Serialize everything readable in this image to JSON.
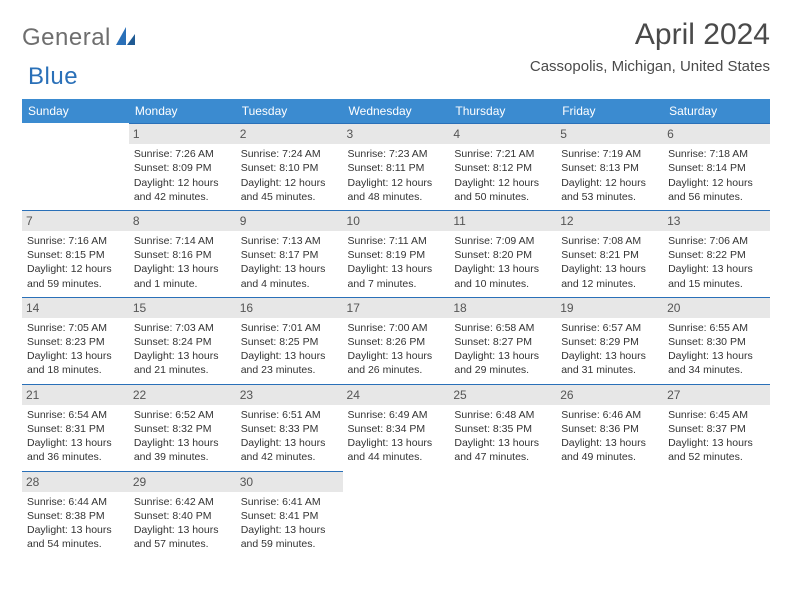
{
  "logo": {
    "part1": "General",
    "part2": "Blue"
  },
  "title": "April 2024",
  "subtitle": "Cassopolis, Michigan, United States",
  "colors": {
    "header_bg": "#3b8bd0",
    "header_text": "#ffffff",
    "daynum_bg": "#e7e7e7",
    "daynum_border": "#2a70b8",
    "text": "#333333",
    "title": "#4a4a4a",
    "logo_gray": "#6e6e6e",
    "logo_blue": "#2a70b8",
    "page_bg": "#ffffff"
  },
  "typography": {
    "title_size": 30,
    "subtitle_size": 15,
    "header_size": 12,
    "cell_size": 10.5
  },
  "weekdays": [
    "Sunday",
    "Monday",
    "Tuesday",
    "Wednesday",
    "Thursday",
    "Friday",
    "Saturday"
  ],
  "weeks": [
    [
      {
        "n": "",
        "lines": [
          "",
          "",
          "",
          ""
        ]
      },
      {
        "n": "1",
        "lines": [
          "Sunrise: 7:26 AM",
          "Sunset: 8:09 PM",
          "Daylight: 12 hours",
          "and 42 minutes."
        ]
      },
      {
        "n": "2",
        "lines": [
          "Sunrise: 7:24 AM",
          "Sunset: 8:10 PM",
          "Daylight: 12 hours",
          "and 45 minutes."
        ]
      },
      {
        "n": "3",
        "lines": [
          "Sunrise: 7:23 AM",
          "Sunset: 8:11 PM",
          "Daylight: 12 hours",
          "and 48 minutes."
        ]
      },
      {
        "n": "4",
        "lines": [
          "Sunrise: 7:21 AM",
          "Sunset: 8:12 PM",
          "Daylight: 12 hours",
          "and 50 minutes."
        ]
      },
      {
        "n": "5",
        "lines": [
          "Sunrise: 7:19 AM",
          "Sunset: 8:13 PM",
          "Daylight: 12 hours",
          "and 53 minutes."
        ]
      },
      {
        "n": "6",
        "lines": [
          "Sunrise: 7:18 AM",
          "Sunset: 8:14 PM",
          "Daylight: 12 hours",
          "and 56 minutes."
        ]
      }
    ],
    [
      {
        "n": "7",
        "lines": [
          "Sunrise: 7:16 AM",
          "Sunset: 8:15 PM",
          "Daylight: 12 hours",
          "and 59 minutes."
        ]
      },
      {
        "n": "8",
        "lines": [
          "Sunrise: 7:14 AM",
          "Sunset: 8:16 PM",
          "Daylight: 13 hours",
          "and 1 minute."
        ]
      },
      {
        "n": "9",
        "lines": [
          "Sunrise: 7:13 AM",
          "Sunset: 8:17 PM",
          "Daylight: 13 hours",
          "and 4 minutes."
        ]
      },
      {
        "n": "10",
        "lines": [
          "Sunrise: 7:11 AM",
          "Sunset: 8:19 PM",
          "Daylight: 13 hours",
          "and 7 minutes."
        ]
      },
      {
        "n": "11",
        "lines": [
          "Sunrise: 7:09 AM",
          "Sunset: 8:20 PM",
          "Daylight: 13 hours",
          "and 10 minutes."
        ]
      },
      {
        "n": "12",
        "lines": [
          "Sunrise: 7:08 AM",
          "Sunset: 8:21 PM",
          "Daylight: 13 hours",
          "and 12 minutes."
        ]
      },
      {
        "n": "13",
        "lines": [
          "Sunrise: 7:06 AM",
          "Sunset: 8:22 PM",
          "Daylight: 13 hours",
          "and 15 minutes."
        ]
      }
    ],
    [
      {
        "n": "14",
        "lines": [
          "Sunrise: 7:05 AM",
          "Sunset: 8:23 PM",
          "Daylight: 13 hours",
          "and 18 minutes."
        ]
      },
      {
        "n": "15",
        "lines": [
          "Sunrise: 7:03 AM",
          "Sunset: 8:24 PM",
          "Daylight: 13 hours",
          "and 21 minutes."
        ]
      },
      {
        "n": "16",
        "lines": [
          "Sunrise: 7:01 AM",
          "Sunset: 8:25 PM",
          "Daylight: 13 hours",
          "and 23 minutes."
        ]
      },
      {
        "n": "17",
        "lines": [
          "Sunrise: 7:00 AM",
          "Sunset: 8:26 PM",
          "Daylight: 13 hours",
          "and 26 minutes."
        ]
      },
      {
        "n": "18",
        "lines": [
          "Sunrise: 6:58 AM",
          "Sunset: 8:27 PM",
          "Daylight: 13 hours",
          "and 29 minutes."
        ]
      },
      {
        "n": "19",
        "lines": [
          "Sunrise: 6:57 AM",
          "Sunset: 8:29 PM",
          "Daylight: 13 hours",
          "and 31 minutes."
        ]
      },
      {
        "n": "20",
        "lines": [
          "Sunrise: 6:55 AM",
          "Sunset: 8:30 PM",
          "Daylight: 13 hours",
          "and 34 minutes."
        ]
      }
    ],
    [
      {
        "n": "21",
        "lines": [
          "Sunrise: 6:54 AM",
          "Sunset: 8:31 PM",
          "Daylight: 13 hours",
          "and 36 minutes."
        ]
      },
      {
        "n": "22",
        "lines": [
          "Sunrise: 6:52 AM",
          "Sunset: 8:32 PM",
          "Daylight: 13 hours",
          "and 39 minutes."
        ]
      },
      {
        "n": "23",
        "lines": [
          "Sunrise: 6:51 AM",
          "Sunset: 8:33 PM",
          "Daylight: 13 hours",
          "and 42 minutes."
        ]
      },
      {
        "n": "24",
        "lines": [
          "Sunrise: 6:49 AM",
          "Sunset: 8:34 PM",
          "Daylight: 13 hours",
          "and 44 minutes."
        ]
      },
      {
        "n": "25",
        "lines": [
          "Sunrise: 6:48 AM",
          "Sunset: 8:35 PM",
          "Daylight: 13 hours",
          "and 47 minutes."
        ]
      },
      {
        "n": "26",
        "lines": [
          "Sunrise: 6:46 AM",
          "Sunset: 8:36 PM",
          "Daylight: 13 hours",
          "and 49 minutes."
        ]
      },
      {
        "n": "27",
        "lines": [
          "Sunrise: 6:45 AM",
          "Sunset: 8:37 PM",
          "Daylight: 13 hours",
          "and 52 minutes."
        ]
      }
    ],
    [
      {
        "n": "28",
        "lines": [
          "Sunrise: 6:44 AM",
          "Sunset: 8:38 PM",
          "Daylight: 13 hours",
          "and 54 minutes."
        ]
      },
      {
        "n": "29",
        "lines": [
          "Sunrise: 6:42 AM",
          "Sunset: 8:40 PM",
          "Daylight: 13 hours",
          "and 57 minutes."
        ]
      },
      {
        "n": "30",
        "lines": [
          "Sunrise: 6:41 AM",
          "Sunset: 8:41 PM",
          "Daylight: 13 hours",
          "and 59 minutes."
        ]
      },
      {
        "n": "",
        "lines": [
          "",
          "",
          "",
          ""
        ]
      },
      {
        "n": "",
        "lines": [
          "",
          "",
          "",
          ""
        ]
      },
      {
        "n": "",
        "lines": [
          "",
          "",
          "",
          ""
        ]
      },
      {
        "n": "",
        "lines": [
          "",
          "",
          "",
          ""
        ]
      }
    ]
  ]
}
